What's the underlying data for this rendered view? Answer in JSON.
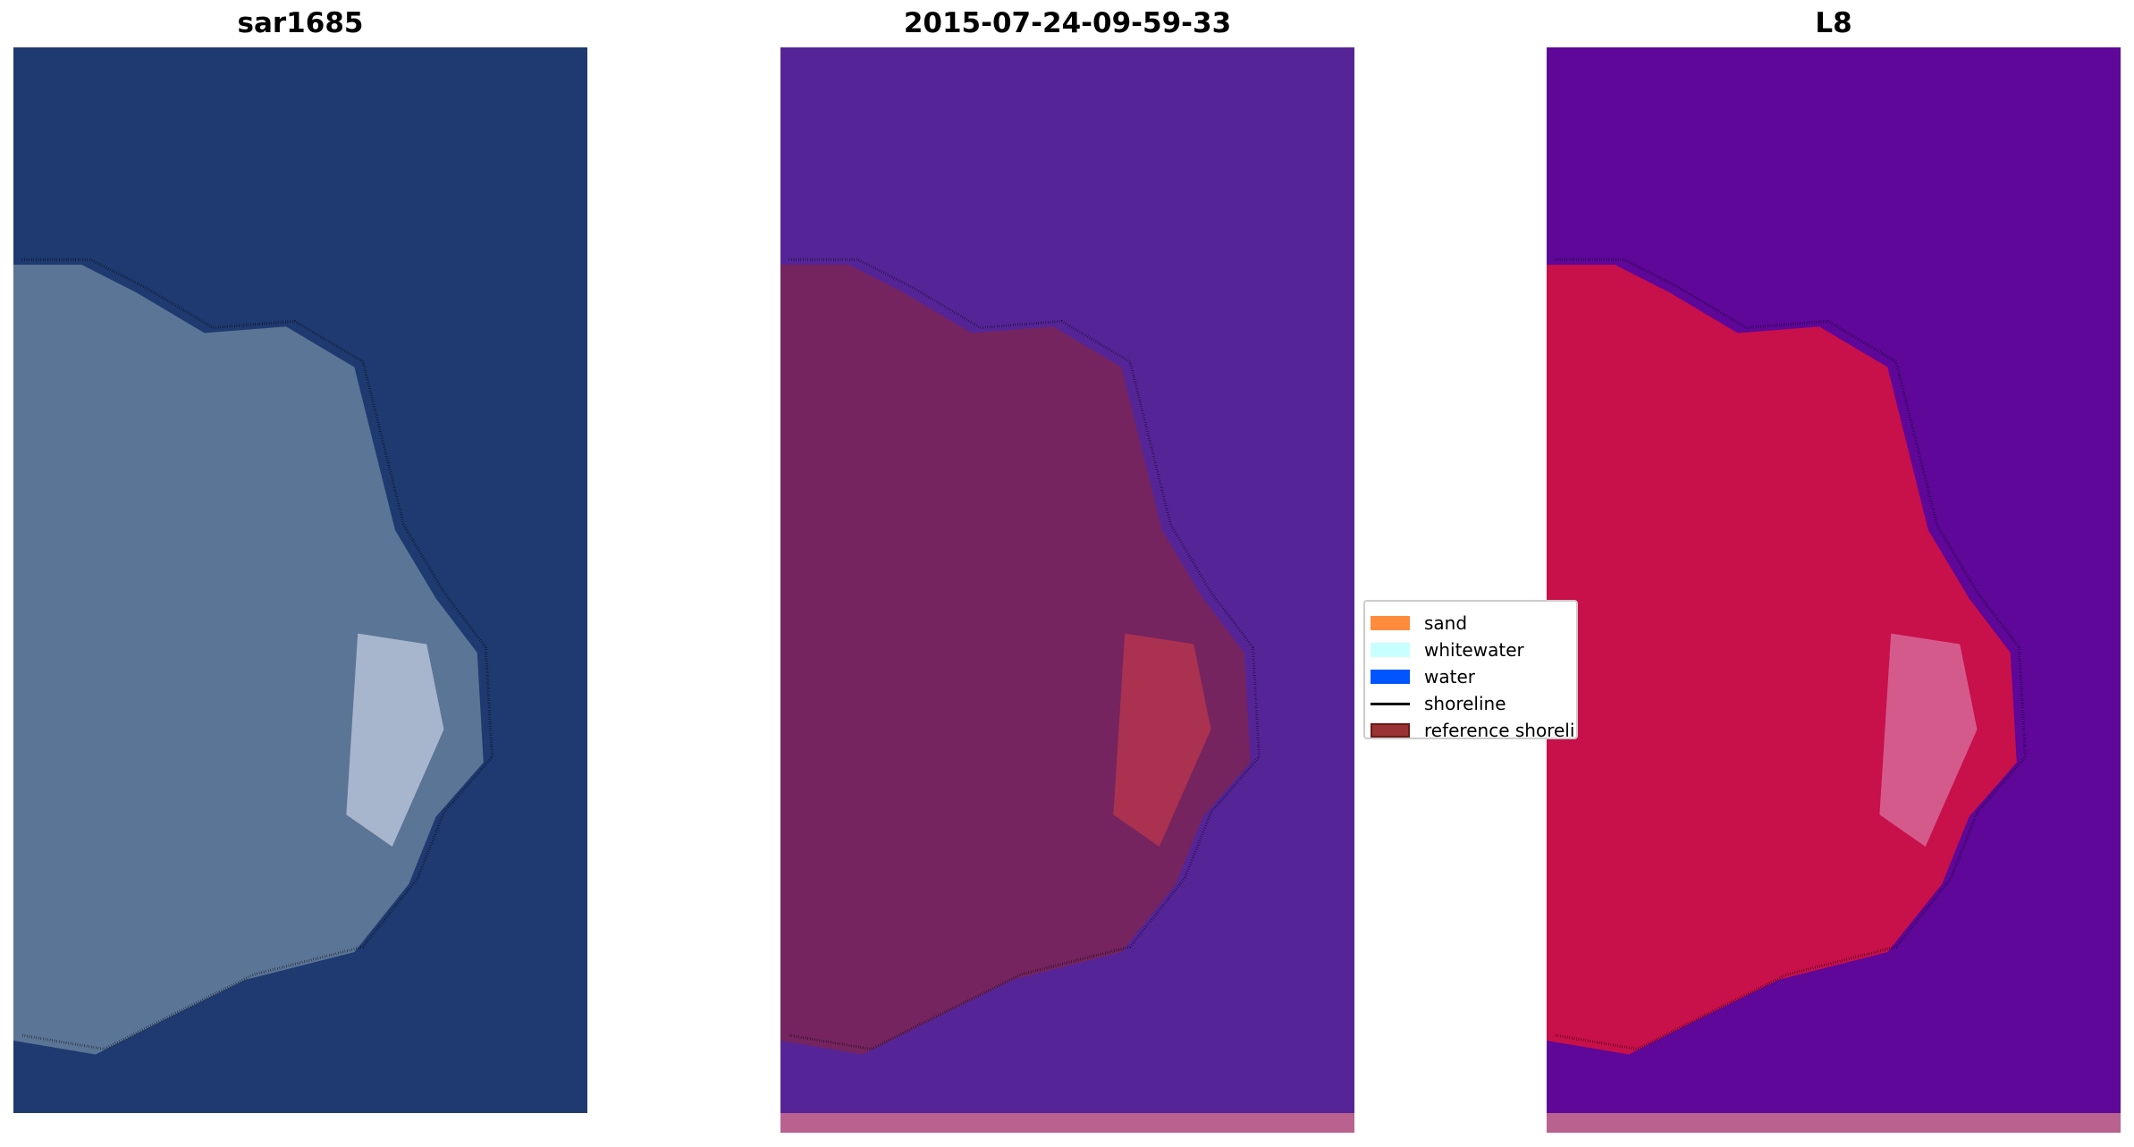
{
  "panels": [
    {
      "title": "sar1685",
      "background": "#1f3a70",
      "land": "#5b7596",
      "highlight": "#c8d2e4"
    },
    {
      "title": "2015-07-24-09-59-33",
      "background": "#552598",
      "land": "#75245f",
      "highlight": "#c0394a"
    },
    {
      "title": "L8",
      "background": "#5e0799",
      "land": "#c8104a",
      "highlight": "#d97aa8"
    }
  ],
  "legend": {
    "items": [
      {
        "label": "sand",
        "color": "#ff8c3c",
        "kind": "patch"
      },
      {
        "label": "whitewater",
        "color": "#c8ffff",
        "kind": "patch"
      },
      {
        "label": "water",
        "color": "#0055ff",
        "kind": "patch"
      },
      {
        "label": "shoreline",
        "color": "#000000",
        "kind": "line"
      },
      {
        "label": "reference shoreline",
        "color": "#993333",
        "kind": "patch"
      }
    ]
  }
}
